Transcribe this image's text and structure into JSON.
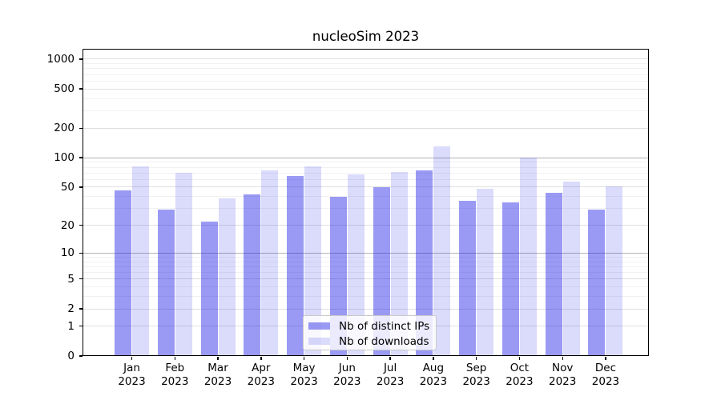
{
  "title": "nucleoSim 2023",
  "chart_data": {
    "type": "bar",
    "title": "nucleoSim 2023",
    "x_axis": {
      "months": [
        "Jan",
        "Feb",
        "Mar",
        "Apr",
        "May",
        "Jun",
        "Jul",
        "Aug",
        "Sep",
        "Oct",
        "Nov",
        "Dec"
      ],
      "year": "2023"
    },
    "y_axis": {
      "scale": "log(1+y)",
      "ticks": [
        0,
        1,
        2,
        5,
        10,
        20,
        50,
        100,
        200,
        500,
        1000
      ],
      "minor_ticks": [
        3,
        4,
        6,
        7,
        8,
        9,
        30,
        40,
        60,
        70,
        80,
        90,
        300,
        400,
        600,
        700,
        800,
        900
      ],
      "range": [
        0,
        1270
      ]
    },
    "series": [
      {
        "name": "Nb of distinct IPs",
        "color": "#1e1ee6",
        "alpha": 0.45,
        "values": [
          46,
          29,
          22,
          42,
          65,
          40,
          50,
          74,
          36,
          35,
          44,
          29
        ]
      },
      {
        "name": "Nb of downloads",
        "color": "#1e1ee6",
        "alpha": 0.16,
        "values": [
          82,
          70,
          38,
          74,
          81,
          68,
          71,
          130,
          48,
          100,
          57,
          51
        ]
      }
    ],
    "grid": true,
    "legend_position": "bottom-center"
  },
  "colors": {
    "grid_major": "#b3b3b3",
    "grid_labeled": "#dfdfdf",
    "grid_minor": "#f1f1f1",
    "axis": "#000000",
    "bar_ip_on_white": "#9b9bf4",
    "bar_dl_on_white": "#dbdbfb"
  }
}
